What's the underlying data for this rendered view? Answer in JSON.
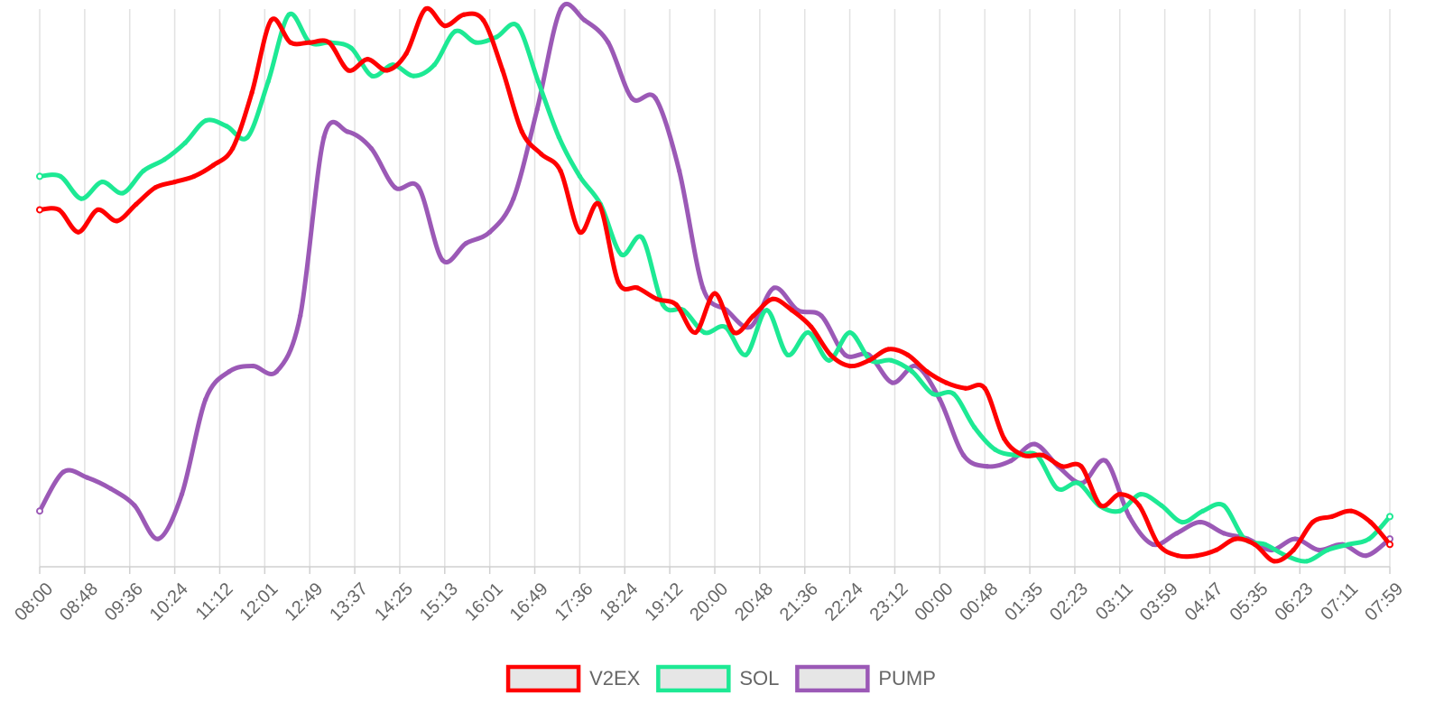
{
  "chart_data": {
    "type": "line",
    "title": "",
    "xlabel": "",
    "ylabel": "",
    "y_axis_labels_shown": false,
    "grid": "vertical",
    "legend_position": "bottom",
    "x_ticks": [
      "08:00",
      "08:48",
      "09:36",
      "10:24",
      "11:12",
      "12:01",
      "12:49",
      "13:37",
      "14:25",
      "15:13",
      "16:01",
      "16:49",
      "17:36",
      "18:24",
      "19:12",
      "20:00",
      "20:48",
      "21:36",
      "22:24",
      "23:12",
      "00:00",
      "00:48",
      "01:35",
      "02:23",
      "03:11",
      "03:59",
      "04:47",
      "05:35",
      "06:23",
      "07:11",
      "07:59"
    ],
    "series": [
      {
        "name": "V2EX",
        "color": "#ff0000",
        "values": [
          64,
          64,
          60,
          64,
          62,
          65,
          68,
          69,
          70,
          72,
          75,
          85,
          98,
          94,
          94,
          94,
          89,
          91,
          89,
          92,
          100,
          97,
          99,
          98,
          89,
          78,
          74,
          71,
          60,
          65,
          51,
          50,
          48,
          47,
          42,
          49,
          42,
          45,
          48,
          46,
          43,
          38,
          36,
          37,
          39,
          38,
          35,
          33,
          32,
          32,
          23,
          20,
          20,
          18,
          18,
          11,
          13,
          11,
          4,
          2,
          2,
          3,
          5,
          4,
          1,
          3,
          8,
          9,
          10,
          8,
          4
        ]
      },
      {
        "name": "SOL",
        "color": "#1de994",
        "values": [
          70,
          70,
          66,
          69,
          67,
          71,
          73,
          76,
          80,
          79,
          77,
          87,
          99,
          94,
          94,
          93,
          88,
          90,
          88,
          90,
          96,
          94,
          95,
          97,
          87,
          77,
          70,
          65,
          56,
          59,
          47,
          46,
          42,
          43,
          38,
          46,
          38,
          42,
          37,
          42,
          37,
          37,
          35,
          31,
          31,
          25,
          21,
          20,
          20,
          14,
          15,
          11,
          10,
          13,
          11,
          8,
          10,
          11,
          5,
          4,
          2,
          1,
          3,
          4,
          5,
          9
        ]
      },
      {
        "name": "PUMP",
        "color": "#9b59b6",
        "values": [
          10,
          17,
          16,
          14,
          11,
          5,
          13,
          30,
          35,
          36,
          35,
          45,
          77,
          78,
          75,
          68,
          68,
          55,
          58,
          60,
          66,
          82,
          100,
          98,
          94,
          84,
          84,
          71,
          50,
          46,
          43,
          50,
          46,
          45,
          38,
          38,
          33,
          36,
          30,
          20,
          18,
          19,
          22,
          18,
          15,
          19,
          9,
          4,
          6,
          8,
          6,
          5,
          3,
          5,
          3,
          4,
          2,
          5
        ]
      }
    ]
  }
}
